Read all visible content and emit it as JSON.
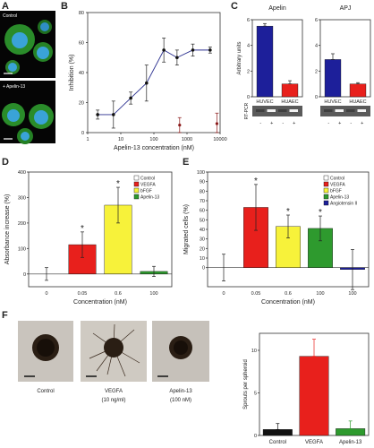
{
  "panels": {
    "a": {
      "letter": "A",
      "label_top": "Control",
      "label_bottom": "+ Apelin-13"
    },
    "b": {
      "letter": "B"
    },
    "c": {
      "letter": "C"
    },
    "d": {
      "letter": "D"
    },
    "e": {
      "letter": "E"
    },
    "f": {
      "letter": "F",
      "images": [
        {
          "line1": "Control",
          "line2": ""
        },
        {
          "line1": "VEGFA",
          "line2": "(10 ng/ml)"
        },
        {
          "line1": "Apelin-13",
          "line2": "(100 nM)"
        }
      ]
    }
  },
  "colors": {
    "red": "#e8201c",
    "yellow": "#f7f23a",
    "green": "#2e9a2e",
    "blue": "#1d1f9a",
    "black": "#111111",
    "navy_line": "#2a2f8f",
    "dark_red": "#8b1a1a"
  },
  "chart_data": [
    {
      "id": "B",
      "type": "line",
      "xlabel": "Apelin-13 concentration (nM)",
      "ylabel": "Inhibition (%)",
      "xscale": "log",
      "xlim": [
        1,
        10000
      ],
      "ylim": [
        0,
        80
      ],
      "xticks": [
        "1",
        "10",
        "100",
        "1000",
        "10000"
      ],
      "yticks": [
        "0",
        "20",
        "40",
        "60",
        "80"
      ],
      "series": [
        {
          "x": [
            2,
            6,
            20,
            60,
            200,
            500,
            1500,
            5000
          ],
          "y": [
            12,
            12,
            23,
            33,
            55,
            50,
            55,
            55
          ],
          "err": [
            3,
            9,
            4,
            12,
            8,
            5,
            4,
            2
          ]
        },
        {
          "x": [
            600,
            8000
          ],
          "y": [
            5,
            6
          ],
          "err": [
            5,
            7
          ]
        }
      ]
    },
    {
      "id": "C-Apelin",
      "type": "bar",
      "title": "Apelin",
      "ylabel": "Arbitrary units",
      "categories": [
        "HUVEC",
        "HUAEC"
      ],
      "values": [
        5.5,
        1.0
      ],
      "err": [
        0.2,
        0.25
      ],
      "ylim": [
        0,
        6
      ],
      "yticks": [
        "0",
        "2",
        "4",
        "6"
      ],
      "gel_label": "RT-PCR",
      "gel_lanes": [
        "-",
        "+",
        "-",
        "+"
      ]
    },
    {
      "id": "C-APJ",
      "type": "bar",
      "title": "APJ",
      "categories": [
        "HUVEC",
        "HUAEC"
      ],
      "values": [
        2.9,
        1.0
      ],
      "err": [
        0.45,
        0.1
      ],
      "ylim": [
        0,
        6
      ],
      "yticks": [
        "0",
        "2",
        "4",
        "6"
      ],
      "gel_lanes": [
        "-",
        "+",
        "-",
        "+"
      ]
    },
    {
      "id": "D",
      "type": "bar",
      "ylabel": "Absorbance increase (%)",
      "xlabel": "Concentration (nM)",
      "categories": [
        "0",
        "0.05",
        "0.6",
        "100"
      ],
      "series_names": [
        "Control",
        "VEGFA",
        "bFGF",
        "Apelin-13"
      ],
      "values": [
        0,
        115,
        270,
        10
      ],
      "err": [
        25,
        50,
        70,
        20
      ],
      "significant": [
        false,
        true,
        true,
        false
      ],
      "ylim": [
        -50,
        400
      ],
      "yticks": [
        "0",
        "100",
        "200",
        "300",
        "400"
      ]
    },
    {
      "id": "E",
      "type": "bar",
      "ylabel": "Migrated cells (%)",
      "xlabel": "Concentration (nM)",
      "categories": [
        "0",
        "0.05",
        "0.6",
        "100",
        "100"
      ],
      "series_names": [
        "Control",
        "VEGFA",
        "bFGF",
        "Apelin-13",
        "Angiotensin II"
      ],
      "values": [
        0,
        63,
        43,
        41,
        -2
      ],
      "err": [
        14,
        24,
        12,
        13,
        21
      ],
      "significant": [
        false,
        true,
        true,
        true,
        false
      ],
      "ylim": [
        -20,
        100
      ],
      "yticks": [
        "0",
        "10",
        "20",
        "30",
        "40",
        "50",
        "60",
        "70",
        "80",
        "90",
        "100"
      ]
    },
    {
      "id": "F",
      "type": "bar",
      "ylabel": "Sprouts per spheroid",
      "categories": [
        "Control",
        "VEGFA",
        "Apelin-13"
      ],
      "values": [
        0.7,
        9.3,
        0.8
      ],
      "err": [
        0.7,
        2.0,
        0.9
      ],
      "ylim": [
        0,
        12
      ],
      "yticks": [
        "0",
        "5",
        "10"
      ]
    }
  ]
}
